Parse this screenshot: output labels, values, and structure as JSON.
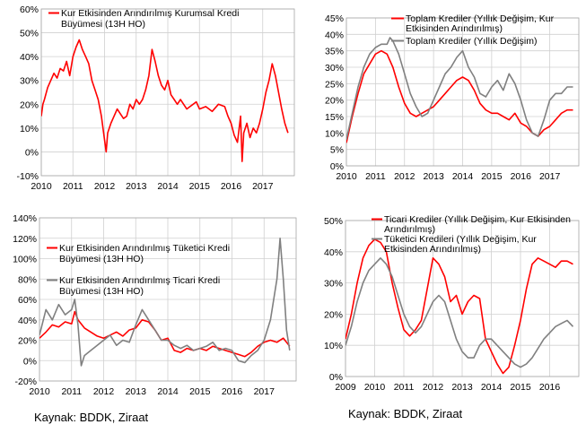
{
  "source_left": "Kaynak: BDDK, Ziraat",
  "source_right": "Kaynak: BDDK, Ziraat",
  "chart_data": [
    {
      "type": "line",
      "ylim": [
        -10,
        60
      ],
      "yticks": [
        -10,
        0,
        10,
        20,
        30,
        40,
        50,
        60
      ],
      "ytick_suffix": "%",
      "xlim": [
        2010,
        2018
      ],
      "xticks": [
        2010,
        2011,
        2012,
        2013,
        2014,
        2015,
        2016,
        2017
      ],
      "grid": true,
      "legend_position": "top-left",
      "series": [
        {
          "name": "Kur Etkisinden Arındırılmış Kurumsal Kredi Büyümesi (13H HO)",
          "legend_lines": [
            "Kur Etkisinden Arındırılmış Kurumsal Kredi",
            "Büyümesi (13H HO)"
          ],
          "color": "#ff0000",
          "x": [
            2010.0,
            2010.05,
            2010.1,
            2010.2,
            2010.3,
            2010.4,
            2010.5,
            2010.6,
            2010.7,
            2010.8,
            2010.9,
            2011.0,
            2011.1,
            2011.2,
            2011.3,
            2011.4,
            2011.5,
            2011.6,
            2011.7,
            2011.8,
            2011.9,
            2012.0,
            2012.05,
            2012.1,
            2012.2,
            2012.3,
            2012.4,
            2012.5,
            2012.6,
            2012.7,
            2012.8,
            2012.9,
            2013.0,
            2013.1,
            2013.2,
            2013.3,
            2013.4,
            2013.5,
            2013.6,
            2013.7,
            2013.8,
            2013.9,
            2014.0,
            2014.1,
            2014.2,
            2014.3,
            2014.4,
            2014.5,
            2014.6,
            2014.7,
            2014.8,
            2014.9,
            2015.0,
            2015.2,
            2015.4,
            2015.6,
            2015.8,
            2015.9,
            2016.0,
            2016.1,
            2016.2,
            2016.3,
            2016.35,
            2016.4,
            2016.5,
            2016.6,
            2016.7,
            2016.8,
            2016.9,
            2017.0,
            2017.1,
            2017.2,
            2017.3,
            2017.4,
            2017.5,
            2017.6,
            2017.7,
            2017.8
          ],
          "y": [
            15,
            20,
            22,
            27,
            30,
            33,
            31,
            35,
            34,
            38,
            32,
            40,
            44,
            47,
            43,
            40,
            37,
            30,
            26,
            22,
            15,
            5,
            0,
            8,
            12,
            15,
            18,
            16,
            14,
            15,
            20,
            18,
            22,
            20,
            22,
            26,
            32,
            43,
            38,
            32,
            28,
            26,
            30,
            24,
            22,
            20,
            22,
            20,
            18,
            19,
            20,
            21,
            18,
            19,
            17,
            20,
            19,
            15,
            12,
            7,
            4,
            15,
            -4,
            8,
            12,
            6,
            10,
            8,
            12,
            18,
            25,
            30,
            37,
            32,
            25,
            18,
            12,
            8
          ]
        }
      ]
    },
    {
      "type": "line",
      "ylim": [
        0,
        45
      ],
      "yticks": [
        0,
        5,
        10,
        15,
        20,
        25,
        30,
        35,
        40,
        45
      ],
      "ytick_suffix": "%",
      "xlim": [
        2010,
        2018
      ],
      "xticks": [
        2010,
        2011,
        2012,
        2013,
        2014,
        2015,
        2016,
        2017
      ],
      "grid": true,
      "legend_position": "top-right",
      "series": [
        {
          "name": "Toplam Krediler (Yıllık Değişim, Kur Etkisinden Arındırılmış)",
          "legend_lines": [
            "Toplam Krediler (Yıllık Değişim, Kur",
            "Etkisinden Arındırılmış)"
          ],
          "color": "#ff0000",
          "x": [
            2010.0,
            2010.2,
            2010.4,
            2010.6,
            2010.8,
            2011.0,
            2011.2,
            2011.4,
            2011.6,
            2011.8,
            2012.0,
            2012.2,
            2012.4,
            2012.6,
            2012.8,
            2013.0,
            2013.2,
            2013.4,
            2013.6,
            2013.8,
            2014.0,
            2014.2,
            2014.4,
            2014.6,
            2014.8,
            2015.0,
            2015.2,
            2015.4,
            2015.6,
            2015.8,
            2016.0,
            2016.2,
            2016.4,
            2016.6,
            2016.8,
            2017.0,
            2017.2,
            2017.4,
            2017.6,
            2017.8
          ],
          "y": [
            7,
            15,
            22,
            28,
            31,
            34,
            35,
            34,
            30,
            24,
            19,
            16,
            15,
            16,
            17,
            18,
            20,
            22,
            24,
            26,
            27,
            26,
            23,
            19,
            17,
            16,
            16,
            15,
            14,
            16,
            13,
            12,
            10,
            9,
            11,
            12,
            14,
            16,
            17,
            17
          ]
        },
        {
          "name": "Toplam Krediler (Yıllık Değişim)",
          "legend_lines": [
            "Toplam Krediler (Yıllık Değişim)"
          ],
          "color": "#808080",
          "x": [
            2010.0,
            2010.2,
            2010.4,
            2010.6,
            2010.8,
            2011.0,
            2011.2,
            2011.4,
            2011.5,
            2011.6,
            2011.8,
            2012.0,
            2012.2,
            2012.4,
            2012.6,
            2012.8,
            2013.0,
            2013.2,
            2013.4,
            2013.6,
            2013.8,
            2014.0,
            2014.2,
            2014.4,
            2014.6,
            2014.8,
            2015.0,
            2015.2,
            2015.4,
            2015.6,
            2015.8,
            2016.0,
            2016.2,
            2016.4,
            2016.6,
            2016.8,
            2017.0,
            2017.2,
            2017.4,
            2017.6,
            2017.8
          ],
          "y": [
            8,
            16,
            24,
            30,
            34,
            36,
            37,
            37,
            39,
            38,
            34,
            28,
            22,
            18,
            15,
            16,
            20,
            24,
            28,
            30,
            33,
            35,
            30,
            27,
            22,
            21,
            24,
            26,
            23,
            28,
            25,
            20,
            14,
            10,
            9,
            14,
            20,
            22,
            22,
            24,
            24
          ]
        }
      ]
    },
    {
      "type": "line",
      "ylim": [
        -20,
        140
      ],
      "yticks": [
        -20,
        0,
        20,
        40,
        60,
        80,
        100,
        120,
        140
      ],
      "ytick_suffix": "%",
      "xlim": [
        2010,
        2018
      ],
      "xticks": [
        2010,
        2011,
        2012,
        2013,
        2014,
        2015,
        2016,
        2017
      ],
      "grid": true,
      "legend_position": "center-left",
      "series": [
        {
          "name": "Kur Etkisinden Arındırılmış Tüketici Kredi Büyümesi (13H HO)",
          "legend_lines": [
            "Kur Etkisinden Arındırılmış Tüketici Kredi",
            "Büyümesi (13H HO)"
          ],
          "color": "#ff0000",
          "x": [
            2010.0,
            2010.2,
            2010.4,
            2010.6,
            2010.8,
            2011.0,
            2011.1,
            2011.2,
            2011.4,
            2011.6,
            2011.8,
            2012.0,
            2012.2,
            2012.4,
            2012.6,
            2012.8,
            2013.0,
            2013.2,
            2013.4,
            2013.6,
            2013.8,
            2014.0,
            2014.2,
            2014.4,
            2014.6,
            2014.8,
            2015.0,
            2015.2,
            2015.4,
            2015.6,
            2015.8,
            2016.0,
            2016.2,
            2016.4,
            2016.6,
            2016.8,
            2017.0,
            2017.2,
            2017.4,
            2017.6,
            2017.8
          ],
          "y": [
            22,
            28,
            35,
            33,
            38,
            36,
            48,
            40,
            32,
            28,
            24,
            22,
            25,
            28,
            24,
            30,
            32,
            40,
            38,
            30,
            20,
            22,
            10,
            8,
            12,
            10,
            12,
            10,
            14,
            12,
            10,
            8,
            6,
            4,
            8,
            14,
            18,
            20,
            18,
            22,
            14
          ]
        },
        {
          "name": "Kur Etkisinden Arındırılmış Ticari Kredi Büyümesi (13H HO)",
          "legend_lines": [
            "Kur Etkisinden Arındırılmış Ticari Kredi",
            "Büyümesi (13H HO)"
          ],
          "color": "#808080",
          "x": [
            2010.0,
            2010.2,
            2010.4,
            2010.6,
            2010.8,
            2011.0,
            2011.1,
            2011.2,
            2011.3,
            2011.4,
            2011.6,
            2011.8,
            2012.0,
            2012.2,
            2012.4,
            2012.6,
            2012.8,
            2013.0,
            2013.2,
            2013.4,
            2013.6,
            2013.8,
            2014.0,
            2014.2,
            2014.4,
            2014.6,
            2014.8,
            2015.0,
            2015.2,
            2015.4,
            2015.6,
            2015.8,
            2016.0,
            2016.2,
            2016.4,
            2016.6,
            2016.8,
            2017.0,
            2017.2,
            2017.4,
            2017.5,
            2017.6,
            2017.7,
            2017.8
          ],
          "y": [
            25,
            50,
            40,
            55,
            45,
            50,
            60,
            35,
            -5,
            5,
            10,
            15,
            20,
            25,
            15,
            20,
            18,
            35,
            50,
            40,
            30,
            20,
            20,
            15,
            12,
            15,
            10,
            12,
            14,
            18,
            10,
            12,
            10,
            0,
            -2,
            5,
            10,
            20,
            40,
            80,
            120,
            80,
            30,
            10
          ]
        }
      ]
    },
    {
      "type": "line",
      "ylim": [
        0,
        50
      ],
      "yticks": [
        0,
        10,
        20,
        30,
        40,
        50
      ],
      "ytick_suffix": "%",
      "xlim": [
        2009,
        2017
      ],
      "xticks": [
        2009,
        2010,
        2011,
        2012,
        2013,
        2014,
        2015,
        2016
      ],
      "grid": true,
      "legend_position": "top-right",
      "series": [
        {
          "name": "Ticari Krediler (Yıllık Değişim, Kur Etkisinden Arındırılmış)",
          "legend_lines": [
            "Ticari Krediler (Yıllık Değişim, Kur Etkisinden",
            "Arındırılmış)"
          ],
          "color": "#ff0000",
          "x": [
            2009.0,
            2009.2,
            2009.4,
            2009.6,
            2009.8,
            2010.0,
            2010.2,
            2010.4,
            2010.6,
            2010.8,
            2011.0,
            2011.2,
            2011.4,
            2011.6,
            2011.8,
            2012.0,
            2012.2,
            2012.4,
            2012.6,
            2012.8,
            2013.0,
            2013.2,
            2013.4,
            2013.6,
            2013.8,
            2014.0,
            2014.2,
            2014.4,
            2014.6,
            2014.8,
            2015.0,
            2015.2,
            2015.4,
            2015.6,
            2015.8,
            2016.0,
            2016.2,
            2016.4,
            2016.6,
            2016.8
          ],
          "y": [
            12,
            20,
            30,
            38,
            42,
            44,
            43,
            40,
            30,
            22,
            15,
            13,
            15,
            18,
            28,
            38,
            36,
            32,
            24,
            26,
            20,
            24,
            26,
            25,
            12,
            8,
            4,
            1,
            3,
            10,
            18,
            28,
            36,
            38,
            37,
            36,
            35,
            37,
            37,
            36
          ]
        },
        {
          "name": "Tüketici Kredileri (Yıllık Değişim, Kur Etkisinden Arındırılmış)",
          "legend_lines": [
            "Tüketici Kredileri (Yıllık Değişim, Kur",
            "Etkisinden Arındırılmış)"
          ],
          "color": "#808080",
          "x": [
            2009.0,
            2009.2,
            2009.4,
            2009.6,
            2009.8,
            2010.0,
            2010.2,
            2010.4,
            2010.6,
            2010.8,
            2011.0,
            2011.2,
            2011.4,
            2011.6,
            2011.8,
            2012.0,
            2012.2,
            2012.4,
            2012.6,
            2012.8,
            2013.0,
            2013.2,
            2013.4,
            2013.6,
            2013.8,
            2014.0,
            2014.2,
            2014.4,
            2014.6,
            2014.8,
            2015.0,
            2015.2,
            2015.4,
            2015.6,
            2015.8,
            2016.0,
            2016.2,
            2016.4,
            2016.6,
            2016.8
          ],
          "y": [
            10,
            16,
            24,
            30,
            34,
            36,
            38,
            36,
            32,
            26,
            20,
            16,
            14,
            16,
            20,
            24,
            26,
            24,
            18,
            12,
            8,
            6,
            6,
            10,
            12,
            12,
            10,
            8,
            6,
            4,
            3,
            4,
            6,
            9,
            12,
            14,
            16,
            17,
            18,
            16
          ]
        }
      ]
    }
  ]
}
